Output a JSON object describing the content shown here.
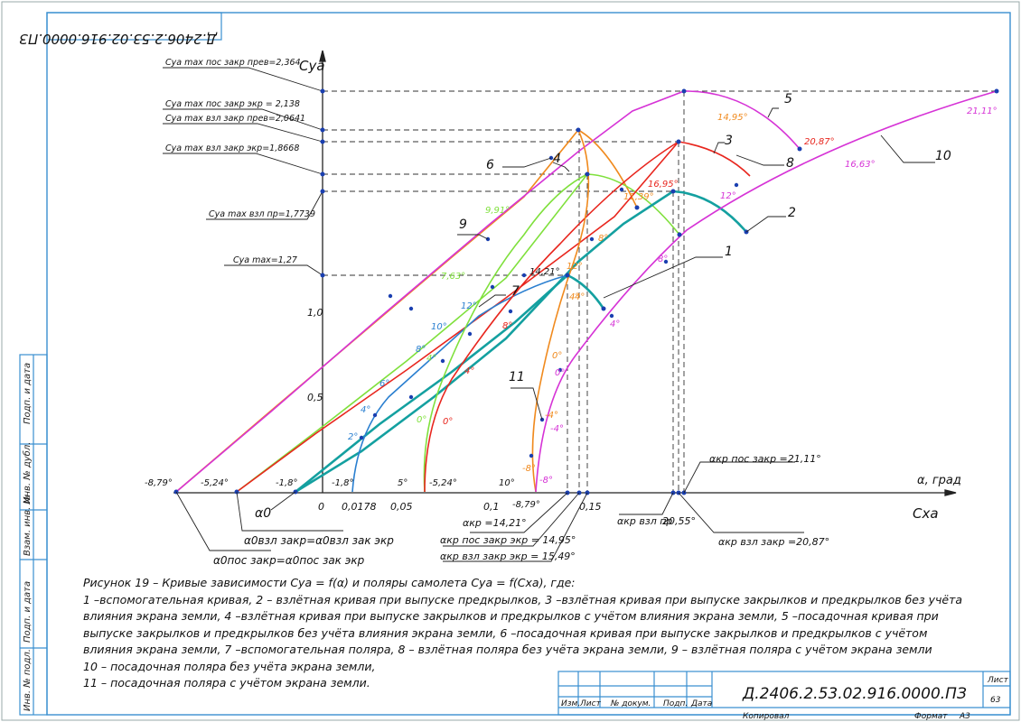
{
  "stamp_top": "Д.2406.2.53.02.916.0000.ПЗ",
  "axes": {
    "y": "Cya",
    "x": "Cxa",
    "alpha": "α, град"
  },
  "left_labels": [
    "Cya max пос закр прев=2,364",
    "Cya max пос закр экр = 2,138",
    "Cya max взл закр прев=2,0641",
    "Cya max взл закр экр=1,8668",
    "Cya max взл пр=1,7739",
    "Cya max=1,27"
  ],
  "y_ticks": [
    "0,5",
    "1,0"
  ],
  "x_ticks": [
    "0",
    "0,0178",
    "0,05",
    "0,1",
    "0,15"
  ],
  "angle_labels": {
    "a1": "-8,79°",
    "a2": "-5,24°",
    "a3": "-1,8°",
    "a4": "-1,8°",
    "a5": "5°",
    "a6": "-5,24°",
    "a7": "10°",
    "a8": "-8,79°",
    "a9": "2°",
    "a10": "4°",
    "a11": "6°",
    "a12": "8°",
    "a13": "10°",
    "a14": "12°",
    "a15": "4°",
    "a16": "4°",
    "a17": "8°",
    "a18": "0°",
    "a19": "0°",
    "a20": "-8°",
    "a21": "-8°",
    "a22": "-4°",
    "a23": "-4°",
    "a24": "0°",
    "a25": "0°",
    "a26": "4°",
    "a27": "8°",
    "a28": "12°",
    "a29": "4°",
    "a30": "8°",
    "a31": "12°",
    "a32": "7,63°",
    "a33": "9,91°",
    "a34": "14,21°",
    "a35": "11,39°",
    "a36": "16,95°",
    "a37": "14,95°",
    "a38": "20,87°",
    "a39": "16,63°",
    "a40": "21,11°",
    "a41": "4°"
  },
  "curve_numbers": [
    "1",
    "2",
    "3",
    "4",
    "5",
    "6",
    "7",
    "8",
    "9",
    "10",
    "11"
  ],
  "bottom_labels": {
    "alpha0": "α0",
    "alpha_vzl": "α0взл закр=α0взл зак экр",
    "alpha_pos": "α0пос закр=α0пос зак экр",
    "akr": "αкр =14,21°",
    "akr_pos_ekr": "αкр пос закр экр = 14,95°",
    "akr_vzl_ekr": "αкр взл закр экр = 15,49°",
    "akr_vzl_pr": "αкр взл пр",
    "akr_vzl_pr_val": "20,55°",
    "akr_vzl_zakr": "αкр взл закр =20,87°",
    "akr_pos_zakr": "αкр пос закр =21,11°"
  },
  "caption": [
    "Рисунок 19 – Кривые зависимости Cya = f(α) и поляры самолета Cya = f(Cxa), где:",
    "1 –вспомогательная кривая, 2 – взлётная кривая при выпуске предкрылков, 3 –взлётная кривая при выпуске закрылков и предкрылков без учёта",
    "влияния экрана земли, 4 –взлётная кривая при выпуске закрылков и предкрылков с учётом влияния экрана земли, 5 –посадочная кривая при",
    "выпуске закрылков и предкрылков  без учёта влияния экрана земли, 6 –посадочная кривая при выпуске закрылков и предкрылков с учётом",
    "влияния экрана земли, 7 –вспомогательная поляра, 8 – взлётная поляра без учёта экрана земли, 9 – взлётная поляра с учётом экрана земли",
    "10 – посадочная поляра без учёта экрана земли,",
    "11 – посадочная поляра с учётом экрана земли."
  ],
  "side_stamp": [
    "Подп. и дата",
    "Инв. № дубл.",
    "Взам. инв. №",
    "Подп. и дата",
    "Инв. № подл."
  ],
  "title_block": {
    "cols": [
      "Изм.",
      "Лист",
      "№ докум.",
      "Подп.",
      "Дата"
    ],
    "doc_code": "Д.2406.2.53.02.916.0000.ПЗ",
    "sheet_label": "Лист",
    "sheet_num": "63",
    "copied": "Копировал",
    "format_label": "Формат",
    "format": "А3"
  }
}
